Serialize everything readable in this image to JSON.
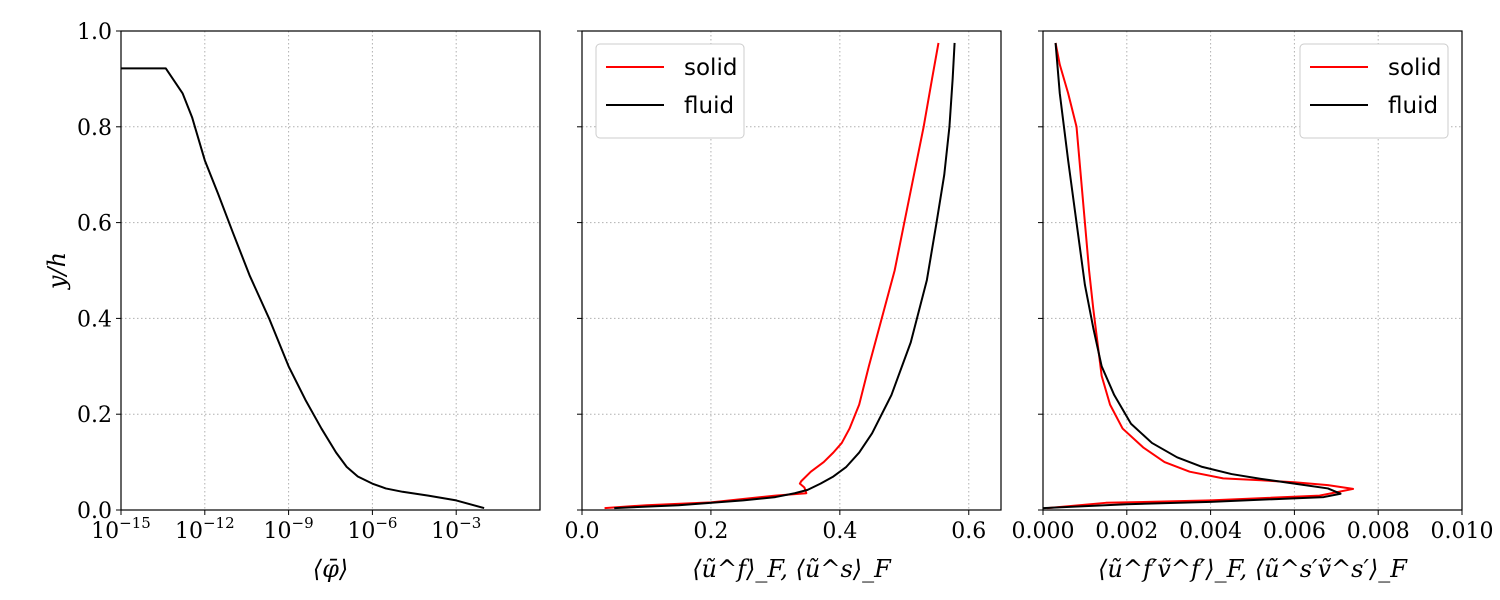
{
  "chart_data": [
    {
      "type": "line",
      "xscale": "log",
      "xlabel": "⟨φ̄⟩",
      "ylabel": "y/h",
      "xlim": [
        1e-15,
        1
      ],
      "ylim": [
        0.0,
        1.0
      ],
      "xticks": [
        1e-15,
        1e-12,
        1e-09,
        1e-06,
        0.001
      ],
      "xtick_labels": [
        {
          "base": "10",
          "exp": "−15"
        },
        {
          "base": "10",
          "exp": "−12"
        },
        {
          "base": "10",
          "exp": "−9"
        },
        {
          "base": "10",
          "exp": "−6"
        },
        {
          "base": "10",
          "exp": "−3"
        }
      ],
      "yticks": [
        0.0,
        0.2,
        0.4,
        0.6,
        0.8,
        1.0
      ],
      "ytick_labels": [
        "0.0",
        "0.2",
        "0.4",
        "0.6",
        "0.8",
        "1.0"
      ],
      "grid": true,
      "series": [
        {
          "name": "phi",
          "color": "#000000",
          "x": [
            1e-15,
            4e-14,
            1.6e-13,
            3.5e-13,
            1e-12,
            3e-12,
            1e-11,
            4e-11,
            2e-10,
            1e-09,
            4e-09,
            1.5e-08,
            5e-08,
            1.2e-07,
            3e-07,
            1e-06,
            3e-06,
            1.2e-05,
            0.0001,
            0.001,
            0.01
          ],
          "y": [
            0.922,
            0.922,
            0.87,
            0.82,
            0.73,
            0.66,
            0.58,
            0.49,
            0.4,
            0.3,
            0.23,
            0.17,
            0.12,
            0.09,
            0.07,
            0.055,
            0.045,
            0.038,
            0.03,
            0.02,
            0.004
          ]
        }
      ]
    },
    {
      "type": "line",
      "xlabel": "⟨ũ^f⟩_F, ⟨ũ^s⟩_F",
      "ylabel": "",
      "xlim": [
        0.0,
        0.65
      ],
      "ylim": [
        0.0,
        1.0
      ],
      "xticks": [
        0.0,
        0.2,
        0.4,
        0.6
      ],
      "xtick_labels": [
        "0.0",
        "0.2",
        "0.4",
        "0.6"
      ],
      "yticks": [
        0.0,
        0.2,
        0.4,
        0.6,
        0.8,
        1.0
      ],
      "grid": true,
      "legend": {
        "position": "top-left",
        "entries": [
          "solid",
          "fluid"
        ]
      },
      "series": [
        {
          "name": "solid",
          "color": "#ff0000",
          "x": [
            0.035,
            0.1,
            0.2,
            0.3,
            0.348,
            0.345,
            0.338,
            0.34,
            0.355,
            0.375,
            0.39,
            0.403,
            0.415,
            0.43,
            0.445,
            0.465,
            0.485,
            0.5,
            0.515,
            0.53,
            0.543,
            0.553
          ],
          "y": [
            0.004,
            0.01,
            0.016,
            0.03,
            0.035,
            0.047,
            0.055,
            0.06,
            0.08,
            0.1,
            0.12,
            0.14,
            0.17,
            0.22,
            0.3,
            0.4,
            0.5,
            0.6,
            0.7,
            0.8,
            0.9,
            0.975
          ]
        },
        {
          "name": "fluid",
          "color": "#000000",
          "x": [
            0.05,
            0.15,
            0.25,
            0.3,
            0.33,
            0.35,
            0.37,
            0.39,
            0.41,
            0.43,
            0.45,
            0.48,
            0.51,
            0.535,
            0.55,
            0.562,
            0.57,
            0.575,
            0.578
          ],
          "y": [
            0.004,
            0.01,
            0.02,
            0.027,
            0.035,
            0.042,
            0.055,
            0.07,
            0.09,
            0.12,
            0.16,
            0.24,
            0.35,
            0.48,
            0.6,
            0.7,
            0.8,
            0.9,
            0.975
          ]
        }
      ]
    },
    {
      "type": "line",
      "xlabel": "⟨ũ^f′ṽ^f′⟩_F, ⟨ũ^s′ṽ^s′⟩_F",
      "ylabel": "",
      "xlim": [
        0.0,
        0.01
      ],
      "ylim": [
        0.0,
        1.0
      ],
      "xticks": [
        0.0,
        0.002,
        0.004,
        0.006,
        0.008,
        0.01
      ],
      "xtick_labels": [
        "0.000",
        "0.002",
        "0.004",
        "0.006",
        "0.008",
        "0.010"
      ],
      "yticks": [
        0.0,
        0.2,
        0.4,
        0.6,
        0.8,
        1.0
      ],
      "grid": true,
      "legend": {
        "position": "top-right",
        "entries": [
          "solid",
          "fluid"
        ]
      },
      "series": [
        {
          "name": "solid",
          "color": "#ff0000",
          "x": [
            0.0001,
            0.0015,
            0.004,
            0.0066,
            0.0074,
            0.0068,
            0.006,
            0.0052,
            0.0043,
            0.0035,
            0.0029,
            0.0024,
            0.0019,
            0.0016,
            0.0014,
            0.0013,
            0.0012,
            0.0011,
            0.001,
            0.0009,
            0.0008,
            0.0006,
            0.0004,
            0.0003
          ],
          "y": [
            0.004,
            0.015,
            0.02,
            0.03,
            0.044,
            0.052,
            0.058,
            0.062,
            0.066,
            0.08,
            0.1,
            0.13,
            0.17,
            0.22,
            0.28,
            0.35,
            0.42,
            0.5,
            0.6,
            0.7,
            0.8,
            0.87,
            0.93,
            0.975
          ]
        },
        {
          "name": "fluid",
          "color": "#000000",
          "x": [
            0.0,
            0.002,
            0.004,
            0.0067,
            0.0071,
            0.0068,
            0.006,
            0.0052,
            0.0045,
            0.0038,
            0.0032,
            0.0026,
            0.0021,
            0.0017,
            0.0014,
            0.0012,
            0.001,
            0.0008,
            0.0006,
            0.0004,
            0.0003
          ],
          "y": [
            0.004,
            0.012,
            0.017,
            0.027,
            0.034,
            0.045,
            0.055,
            0.065,
            0.075,
            0.09,
            0.11,
            0.14,
            0.18,
            0.24,
            0.3,
            0.38,
            0.47,
            0.6,
            0.73,
            0.87,
            0.975
          ]
        }
      ]
    }
  ]
}
